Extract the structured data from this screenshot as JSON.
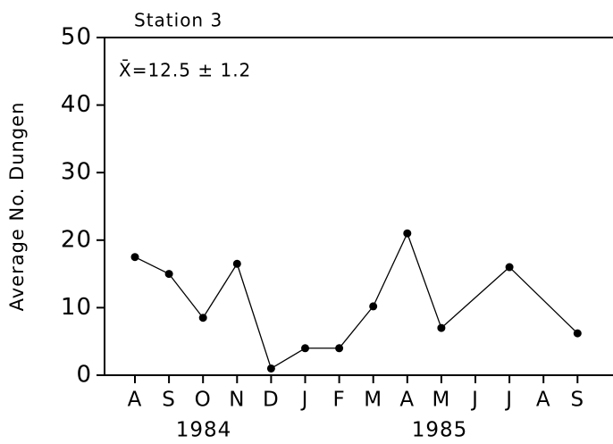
{
  "chart_data": {
    "type": "line",
    "title": "Station 3",
    "annotation": "X̄=12.5 ± 1.2",
    "y_label": "Average No. Dungen",
    "categories": [
      "A",
      "S",
      "O",
      "N",
      "D",
      "J",
      "F",
      "M",
      "A",
      "M",
      "J",
      "J",
      "A",
      "S"
    ],
    "x_group_labels": [
      "1984",
      "1985"
    ],
    "series": [
      {
        "name": "Station 3",
        "color": "#000000",
        "values": [
          17.5,
          15,
          8.5,
          16.5,
          1,
          4,
          4,
          10.2,
          21,
          7,
          null,
          16,
          null,
          6.2
        ]
      }
    ],
    "ylim": [
      0,
      50
    ],
    "yticks": [
      0,
      10,
      20,
      30,
      40,
      50
    ],
    "grid": false
  }
}
